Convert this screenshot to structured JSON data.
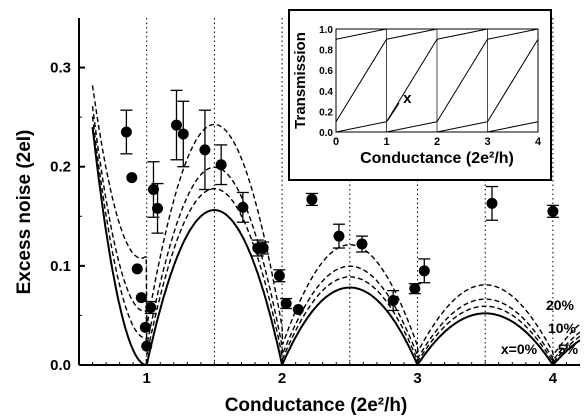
{
  "chart_data": {
    "type": "scatter",
    "xlabel": "Conductance (2e²/h)",
    "ylabel": "Excess noise (2eI)",
    "xlim": [
      0.5,
      4.2
    ],
    "ylim": [
      0,
      0.35
    ],
    "xticks": [
      1,
      2,
      3,
      4
    ],
    "yticks": [
      0.0,
      0.1,
      0.2,
      0.3
    ],
    "ytick_labels": [
      "0.0",
      "0.1",
      "0.2",
      "0.3"
    ],
    "dotted_vertical_lines_x": [
      1.0,
      1.5,
      2.0,
      2.5,
      3.0,
      3.5,
      4.0
    ],
    "points": [
      {
        "x": 0.85,
        "y": 0.235,
        "err": 0.022
      },
      {
        "x": 0.89,
        "y": 0.189,
        "err": 0.0
      },
      {
        "x": 0.93,
        "y": 0.097,
        "err": 0.0
      },
      {
        "x": 0.96,
        "y": 0.068,
        "err": 0.0
      },
      {
        "x": 0.99,
        "y": 0.038,
        "err": 0.0
      },
      {
        "x": 1.0,
        "y": 0.019,
        "err": 0.0
      },
      {
        "x": 1.03,
        "y": 0.058,
        "err": 0.006
      },
      {
        "x": 1.05,
        "y": 0.177,
        "err": 0.028
      },
      {
        "x": 1.08,
        "y": 0.158,
        "err": 0.025
      },
      {
        "x": 1.22,
        "y": 0.242,
        "err": 0.035
      },
      {
        "x": 1.27,
        "y": 0.233,
        "err": 0.033
      },
      {
        "x": 1.43,
        "y": 0.217,
        "err": 0.04
      },
      {
        "x": 1.55,
        "y": 0.202,
        "err": 0.02
      },
      {
        "x": 1.71,
        "y": 0.159,
        "err": 0.015
      },
      {
        "x": 1.82,
        "y": 0.118,
        "err": 0.008
      },
      {
        "x": 1.86,
        "y": 0.118,
        "err": 0.006
      },
      {
        "x": 1.98,
        "y": 0.09,
        "err": 0.006
      },
      {
        "x": 2.03,
        "y": 0.062,
        "err": 0.005
      },
      {
        "x": 2.12,
        "y": 0.056,
        "err": 0.0
      },
      {
        "x": 2.22,
        "y": 0.167,
        "err": 0.006
      },
      {
        "x": 2.42,
        "y": 0.13,
        "err": 0.012
      },
      {
        "x": 2.59,
        "y": 0.122,
        "err": 0.008
      },
      {
        "x": 2.82,
        "y": 0.065,
        "err": 0.01
      },
      {
        "x": 2.98,
        "y": 0.077,
        "err": 0.005
      },
      {
        "x": 3.05,
        "y": 0.095,
        "err": 0.012
      },
      {
        "x": 3.55,
        "y": 0.163,
        "err": 0.017
      },
      {
        "x": 4.0,
        "y": 0.155,
        "err": 0.006
      }
    ],
    "curves": [
      {
        "name": "x=0%",
        "style": "solid",
        "x": 0.0
      },
      {
        "name": "5%",
        "style": "dashed",
        "x": 0.05
      },
      {
        "name": "10%",
        "style": "dashed",
        "x": 0.1
      },
      {
        "name": "20%",
        "style": "dashed",
        "x": 0.2
      }
    ],
    "curve_labels": [
      "20%",
      "10%",
      "5%",
      "x=0%"
    ],
    "inset": {
      "xlabel": "Conductance (2e²/h)",
      "ylabel": "Transmission",
      "xlim": [
        0,
        4
      ],
      "ylim": [
        0,
        1.0
      ],
      "xticks": [
        0,
        1,
        2,
        3,
        4
      ],
      "yticks": [
        "0.0",
        "0.2",
        "0.4",
        "0.6",
        "0.8",
        "1.0"
      ],
      "annotation": "x"
    }
  }
}
